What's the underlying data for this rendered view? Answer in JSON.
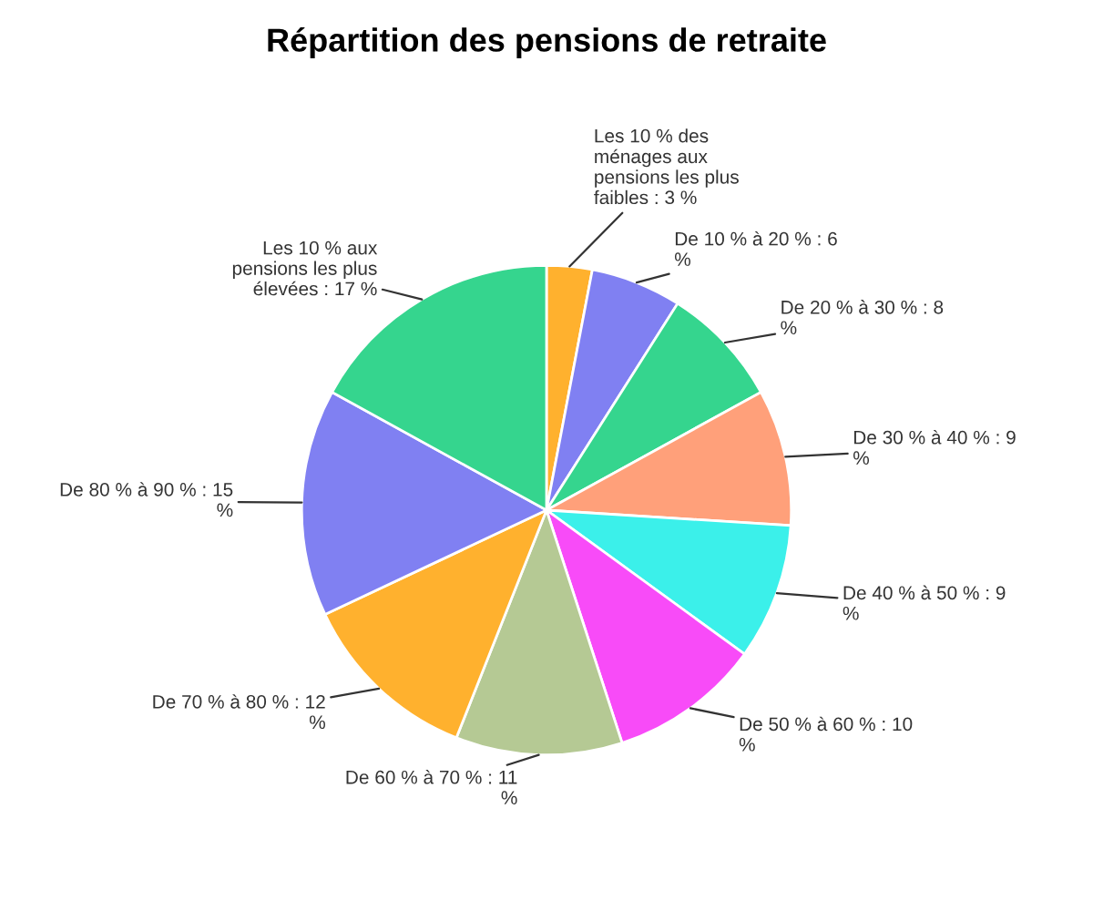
{
  "chart_data": {
    "type": "pie",
    "title": "Répartition des pensions de retraite",
    "categories": [
      "Les 10 % des ménages aux pensions les plus faibles : 3 %",
      "De 10 % à 20 % : 6 %",
      "De 20 % à 30 % : 8 %",
      "De 30 % à 40 % : 9 %",
      "De 40 % à 50 % : 9 %",
      "De 50 % à 60 % : 10 %",
      "De 60 % à 70 % : 11 %",
      "De 70 % à 80 % : 12 %",
      "De 80 % à 90 % : 15 %",
      "Les 10 % aux pensions les plus élevées : 17 %"
    ],
    "values": [
      3,
      6,
      8,
      9,
      9,
      10,
      11,
      12,
      15,
      17
    ],
    "colors": [
      "#ffb12e",
      "#8080f2",
      "#35d58e",
      "#ffa07a",
      "#3bf0ea",
      "#f84bf8",
      "#b5c994",
      "#ffb12e",
      "#8080f2",
      "#35d58e"
    ],
    "legend": false
  }
}
